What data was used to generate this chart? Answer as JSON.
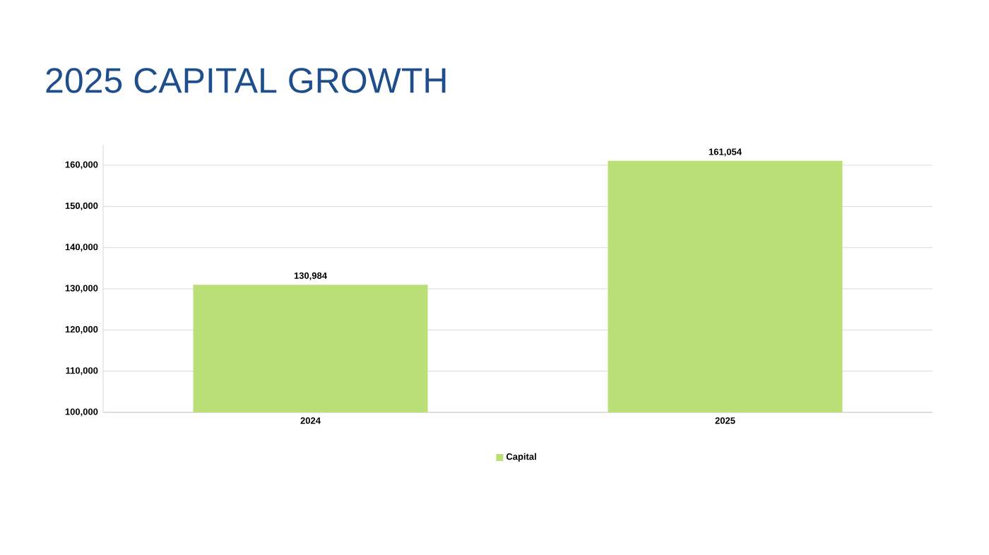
{
  "chart_data": {
    "type": "bar",
    "title": "2025 CAPITAL GROWTH",
    "categories": [
      "2024",
      "2025"
    ],
    "series": [
      {
        "name": "Capital",
        "color": "#badf77",
        "values": [
          130984,
          161054
        ],
        "value_labels": [
          "130,984",
          "161,054"
        ]
      }
    ],
    "ylim": [
      100000,
      165000
    ],
    "yticks": [
      {
        "value": 100000,
        "label": "100,000"
      },
      {
        "value": 110000,
        "label": "110,000"
      },
      {
        "value": 120000,
        "label": "120,000"
      },
      {
        "value": 130000,
        "label": "130,000"
      },
      {
        "value": 140000,
        "label": "140,000"
      },
      {
        "value": 150000,
        "label": "150,000"
      },
      {
        "value": 160000,
        "label": "160,000"
      }
    ],
    "grid": "y",
    "legend": "bottom"
  }
}
